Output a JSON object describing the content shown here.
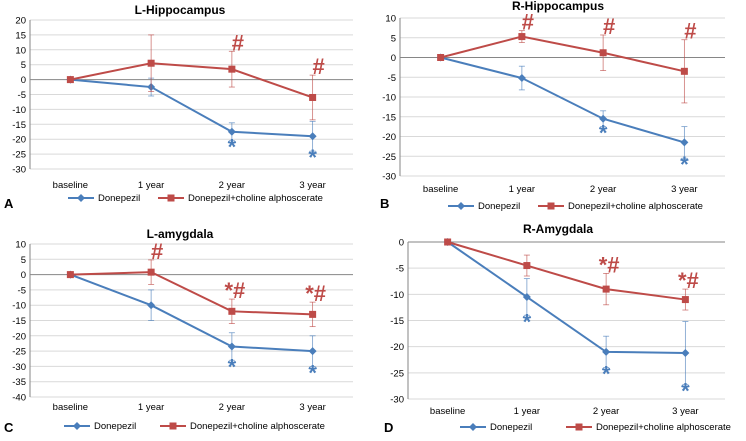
{
  "legend": {
    "donepezil": "Donepezil",
    "combo": "Donepezil+choline alphoscerate"
  },
  "colors": {
    "donepezil": "#4a7ebb",
    "combo": "#be4b48",
    "grid": "#d9d9d9",
    "axis": "#868686"
  },
  "chart_data": [
    {
      "type": "line",
      "panel": "A",
      "title": "L-Hippocampus",
      "categories": [
        "baseline",
        "1 year",
        "2 year",
        "3 year"
      ],
      "ylim": [
        -30,
        20
      ],
      "yticks": [
        20,
        15,
        10,
        5,
        0,
        -5,
        -10,
        -15,
        -20,
        -25,
        -30
      ],
      "series": [
        {
          "name": "Donepezil",
          "key": "donepezil",
          "values": [
            0,
            -2.5,
            -17.5,
            -19
          ],
          "errors": [
            0,
            3,
            3,
            5
          ],
          "annotations": [
            "",
            "",
            "*",
            "*"
          ]
        },
        {
          "name": "Donepezil+choline alphoscerate",
          "key": "combo",
          "values": [
            0,
            5.5,
            3.5,
            -6
          ],
          "errors": [
            0,
            9.5,
            6,
            7.5
          ],
          "annotations": [
            "",
            "",
            "#",
            "#"
          ]
        }
      ]
    },
    {
      "type": "line",
      "panel": "B",
      "title": "R-Hippocampus",
      "categories": [
        "baseline",
        "1 year",
        "2 year",
        "3 year"
      ],
      "ylim": [
        -30,
        10
      ],
      "yticks": [
        10,
        5,
        0,
        -5,
        -10,
        -15,
        -20,
        -25,
        -30
      ],
      "series": [
        {
          "name": "Donepezil",
          "key": "donepezil",
          "values": [
            0,
            -5.2,
            -15.5,
            -21.5
          ],
          "errors": [
            0,
            3,
            2,
            4
          ],
          "annotations": [
            "",
            "",
            "*",
            "*"
          ]
        },
        {
          "name": "Donepezil+choline alphoscerate",
          "key": "combo",
          "values": [
            0,
            5.3,
            1.2,
            -3.5
          ],
          "errors": [
            0,
            1.5,
            4.5,
            8
          ],
          "annotations": [
            "",
            "#",
            "#",
            "#"
          ]
        }
      ]
    },
    {
      "type": "line",
      "panel": "C",
      "title": "L-amygdala",
      "categories": [
        "baseline",
        "1 year",
        "2 year",
        "3 year"
      ],
      "ylim": [
        -40,
        10
      ],
      "yticks": [
        10,
        5,
        0,
        -5,
        -10,
        -15,
        -20,
        -25,
        -30,
        -35,
        -40
      ],
      "series": [
        {
          "name": "Donepezil",
          "key": "donepezil",
          "values": [
            0,
            -10,
            -23.5,
            -25
          ],
          "errors": [
            0,
            5,
            4.5,
            5
          ],
          "annotations": [
            "",
            "",
            "*",
            "*"
          ]
        },
        {
          "name": "Donepezil+choline alphoscerate",
          "key": "combo",
          "values": [
            0,
            0.8,
            -12,
            -13
          ],
          "errors": [
            0,
            4,
            4,
            4
          ],
          "annotations": [
            "",
            "#",
            "*#",
            "*#"
          ]
        }
      ]
    },
    {
      "type": "line",
      "panel": "D",
      "title": "R-Amygdala",
      "categories": [
        "baseline",
        "1 year",
        "2 year",
        "3 year"
      ],
      "ylim": [
        -30,
        0
      ],
      "yticks": [
        0,
        -5,
        -10,
        -15,
        -20,
        -25,
        -30
      ],
      "series": [
        {
          "name": "Donepezil",
          "key": "donepezil",
          "values": [
            0,
            -10.5,
            -21,
            -21.2
          ],
          "errors": [
            0,
            3.5,
            3,
            6
          ],
          "annotations": [
            "",
            "*",
            "*",
            "*"
          ]
        },
        {
          "name": "Donepezil+choline alphoscerate",
          "key": "combo",
          "values": [
            0,
            -4.5,
            -9,
            -11
          ],
          "errors": [
            0,
            2,
            3,
            2
          ],
          "annotations": [
            "",
            "",
            "*#",
            "*#"
          ]
        }
      ]
    }
  ]
}
